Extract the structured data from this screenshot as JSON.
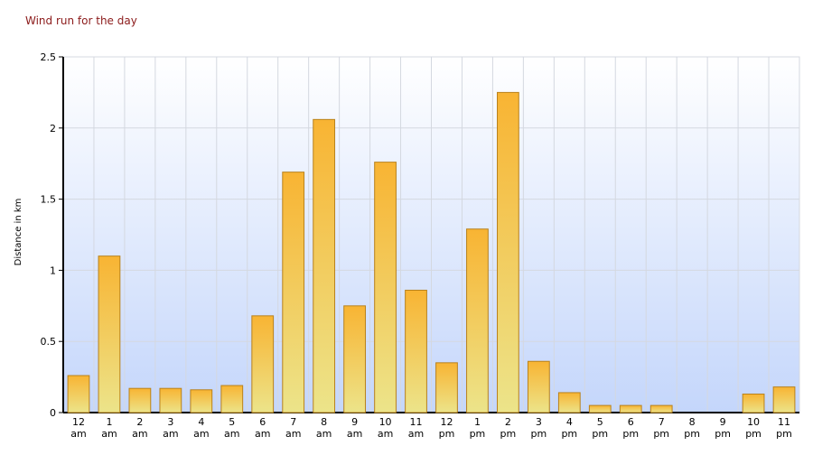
{
  "chart_data": {
    "type": "bar",
    "title": "Wind run for the day",
    "y_label": "Distance in km",
    "categories": [
      "12 am",
      "1 am",
      "2 am",
      "3 am",
      "4 am",
      "5 am",
      "6 am",
      "7 am",
      "8 am",
      "9 am",
      "10 am",
      "11 am",
      "12 pm",
      "1 pm",
      "2 pm",
      "3 pm",
      "4 pm",
      "5 pm",
      "6 pm",
      "7 pm",
      "8 pm",
      "9 pm",
      "10 pm",
      "11 pm"
    ],
    "values": [
      0.26,
      1.1,
      0.17,
      0.17,
      0.16,
      0.19,
      0.68,
      1.69,
      2.06,
      0.75,
      1.76,
      0.86,
      0.35,
      1.29,
      2.25,
      0.36,
      0.14,
      0.05,
      0.05,
      0.05,
      0,
      0,
      0.13,
      0.18
    ],
    "color": "#f5b93a",
    "ylim": [
      0,
      2.5
    ],
    "yticks": [
      0,
      0.5,
      1,
      1.5,
      2,
      2.5
    ],
    "grid": true
  }
}
